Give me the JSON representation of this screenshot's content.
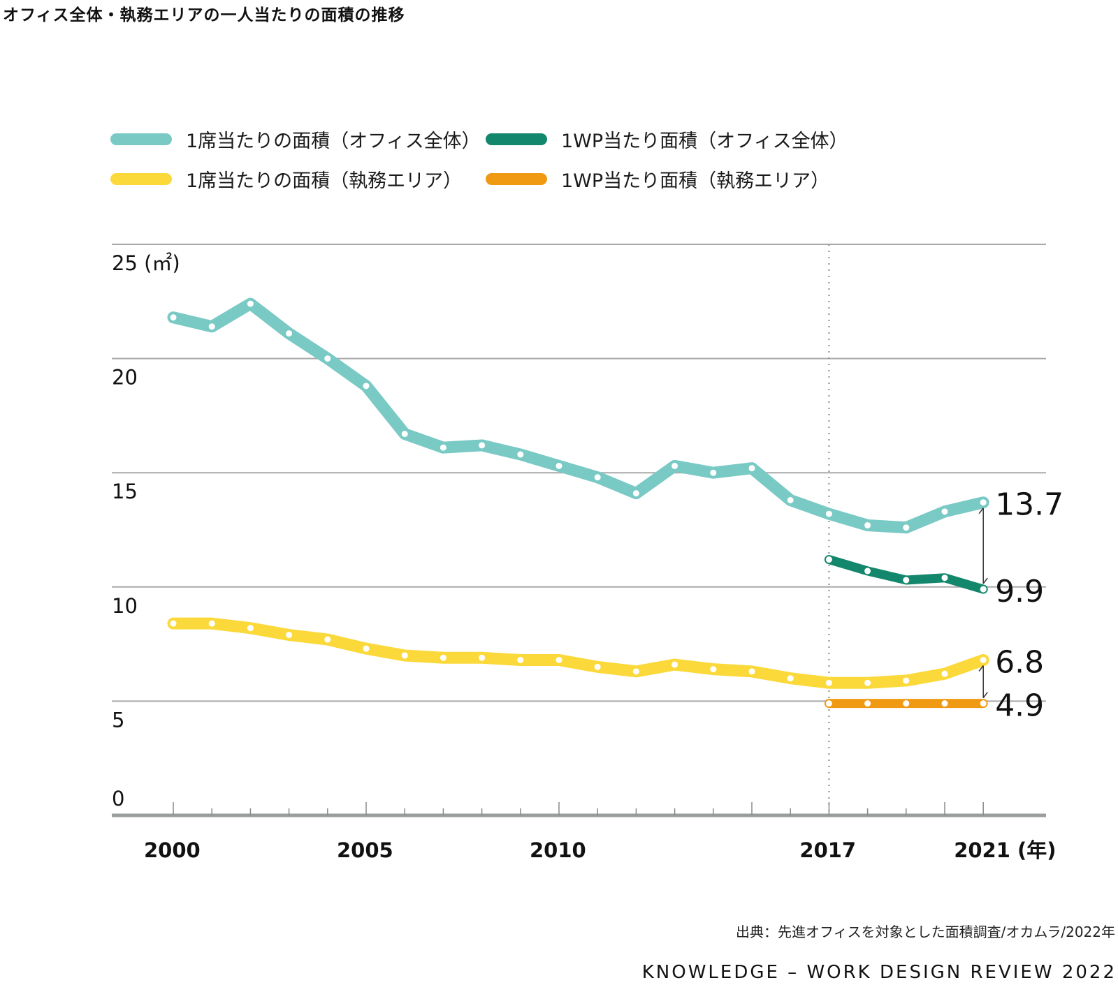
{
  "title": "オフィス全体・執務エリアの一人当たりの面積の推移",
  "source": "出典：先進オフィスを対象とした面積調査/オカムラ/2022年",
  "brand": "KNOWLEDGE – WORK DESIGN REVIEW 2022",
  "chart_data": {
    "type": "line",
    "title": "オフィス全体・執務エリアの一人当たりの面積の推移",
    "xlabel": "(年)",
    "ylabel": "(㎡)",
    "ylim": [
      0,
      25
    ],
    "xlim": [
      2000,
      2021
    ],
    "grid": true,
    "legend_position": "top",
    "yticks": [
      0,
      5,
      10,
      15,
      20,
      25
    ],
    "ytick_labels": [
      "0",
      "5",
      "10",
      "15",
      "20",
      "25 (㎡)"
    ],
    "xticks_labeled": [
      2000,
      2005,
      2010,
      2017,
      2021
    ],
    "xtick_labels": [
      "2000",
      "2005",
      "2010",
      "2017",
      "2021 (年)"
    ],
    "reference_line_year": 2017,
    "series": [
      {
        "name": "1席当たりの面積（オフィス全体）",
        "color": "#79c9c5",
        "x": [
          2000,
          2001,
          2002,
          2003,
          2004,
          2005,
          2006,
          2007,
          2008,
          2009,
          2010,
          2011,
          2012,
          2013,
          2014,
          2015,
          2016,
          2017,
          2018,
          2019,
          2020,
          2021
        ],
        "values": [
          21.8,
          21.4,
          22.4,
          21.1,
          20.0,
          18.8,
          16.7,
          16.1,
          16.2,
          15.8,
          15.3,
          14.8,
          14.1,
          15.3,
          15.0,
          15.2,
          13.8,
          13.2,
          12.7,
          12.6,
          13.3,
          13.7
        ]
      },
      {
        "name": "1WP当たり面積（オフィス全体）",
        "color": "#13876c",
        "x": [
          2017,
          2018,
          2019,
          2020,
          2021
        ],
        "values": [
          11.2,
          10.7,
          10.3,
          10.4,
          9.9
        ]
      },
      {
        "name": "1席当たりの面積（執務エリア）",
        "color": "#fbd93a",
        "x": [
          2000,
          2001,
          2002,
          2003,
          2004,
          2005,
          2006,
          2007,
          2008,
          2009,
          2010,
          2011,
          2012,
          2013,
          2014,
          2015,
          2016,
          2017,
          2018,
          2019,
          2020,
          2021
        ],
        "values": [
          8.4,
          8.4,
          8.2,
          7.9,
          7.7,
          7.3,
          7.0,
          6.9,
          6.9,
          6.8,
          6.8,
          6.5,
          6.3,
          6.6,
          6.4,
          6.3,
          6.0,
          5.8,
          5.8,
          5.9,
          6.2,
          6.8
        ]
      },
      {
        "name": "1WP当たり面積（執務エリア）",
        "color": "#f09a14",
        "x": [
          2017,
          2018,
          2019,
          2020,
          2021
        ],
        "values": [
          4.9,
          4.9,
          4.9,
          4.9,
          4.9
        ]
      }
    ],
    "annotations": [
      {
        "text": "13.7",
        "year": 2021,
        "value": 13.7
      },
      {
        "text": "9.9",
        "year": 2021,
        "value": 9.9
      },
      {
        "text": "6.8",
        "year": 2021,
        "value": 6.8
      },
      {
        "text": "4.9",
        "year": 2021,
        "value": 4.9
      }
    ],
    "brackets": [
      {
        "from": 13.7,
        "to": 9.9,
        "year": 2021
      },
      {
        "from": 6.8,
        "to": 4.9,
        "year": 2021
      }
    ]
  },
  "legend": [
    {
      "label": "1席当たりの面積（オフィス全体）",
      "color": "#79c9c5"
    },
    {
      "label": "1WP当たり面積（オフィス全体）",
      "color": "#13876c"
    },
    {
      "label": "1席当たりの面積（執務エリア）",
      "color": "#fbd93a"
    },
    {
      "label": "1WP当たり面積（執務エリア）",
      "color": "#f09a14"
    }
  ]
}
